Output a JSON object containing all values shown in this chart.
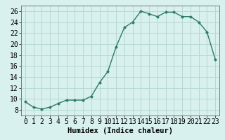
{
  "x": [
    0,
    1,
    2,
    3,
    4,
    5,
    6,
    7,
    8,
    9,
    10,
    11,
    12,
    13,
    14,
    15,
    16,
    17,
    18,
    19,
    20,
    21,
    22,
    23
  ],
  "y": [
    9.5,
    8.5,
    8.2,
    8.5,
    9.2,
    9.8,
    9.8,
    9.8,
    10.5,
    13.0,
    15.0,
    19.5,
    23.0,
    24.0,
    26.0,
    25.5,
    25.0,
    25.8,
    25.8,
    25.0,
    25.0,
    24.0,
    22.2,
    17.2
  ],
  "line_color": "#2d7a6a",
  "marker": "o",
  "markersize": 2.5,
  "linewidth": 1.0,
  "bg_color": "#d8f0ee",
  "grid_color": "#b8d8d4",
  "xlabel": "Humidex (Indice chaleur)",
  "xlim": [
    -0.5,
    23.5
  ],
  "ylim": [
    7,
    27
  ],
  "yticks": [
    8,
    10,
    12,
    14,
    16,
    18,
    20,
    22,
    24,
    26
  ],
  "xticks": [
    0,
    1,
    2,
    3,
    4,
    5,
    6,
    7,
    8,
    9,
    10,
    11,
    12,
    13,
    14,
    15,
    16,
    17,
    18,
    19,
    20,
    21,
    22,
    23
  ],
  "xlabel_fontsize": 7.5,
  "tick_fontsize": 7
}
